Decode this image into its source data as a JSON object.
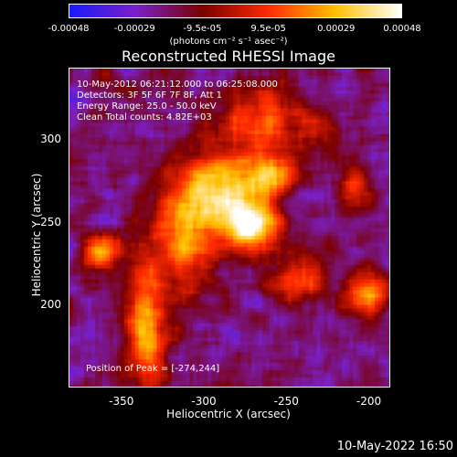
{
  "chart_data": {
    "type": "heatmap",
    "title": "Reconstructed RHESSI Image",
    "xlabel": "Heliocentric X (arcsec)",
    "ylabel": "Heliocentric Y (arcsec)",
    "xlim": [
      -382,
      -187
    ],
    "ylim": [
      150,
      343
    ],
    "x_ticks": [
      "-350",
      "-300",
      "-250",
      "-200"
    ],
    "x_tick_values": [
      -350,
      -300,
      -250,
      -200
    ],
    "y_ticks": [
      "200",
      "250",
      "300"
    ],
    "y_tick_values": [
      200,
      250,
      300
    ],
    "colorbar": {
      "ticks": [
        "-0.00048",
        "-0.00029",
        "-9.5e-05",
        "9.5e-05",
        "0.00029",
        "0.00048"
      ],
      "tick_values": [
        -0.00048,
        -0.00029,
        -9.5e-05,
        9.5e-05,
        0.00029,
        0.00048
      ],
      "unit": "(photons cm⁻² s⁻¹ asec⁻²)",
      "colormap": [
        "#1a1aff",
        "#7a20c8",
        "#7a0000",
        "#ff2a00",
        "#ffc000",
        "#ffffff"
      ]
    },
    "peak": {
      "x": -274,
      "y": 244
    },
    "annotations": [
      "10-May-2012 06:21:12.000 to 06:25:08.000",
      "Detectors: 3F 5F 6F 7F 8F, Att 1",
      "Energy Range: 25.0 - 50.0 keV",
      "Clean     Total counts: 4.82E+03",
      "Position of Peak = [-274,244]"
    ],
    "sources": [
      {
        "x": -272,
        "y": 248,
        "sx": 12,
        "sy": 11,
        "amp": 1.0
      },
      {
        "x": -290,
        "y": 272,
        "sx": 16,
        "sy": 14,
        "amp": 0.75
      },
      {
        "x": -258,
        "y": 278,
        "sx": 10,
        "sy": 9,
        "amp": 0.6
      },
      {
        "x": -312,
        "y": 240,
        "sx": 14,
        "sy": 22,
        "amp": 0.6
      },
      {
        "x": -362,
        "y": 232,
        "sx": 8,
        "sy": 8,
        "amp": 0.7
      },
      {
        "x": -335,
        "y": 185,
        "sx": 9,
        "sy": 26,
        "amp": 0.65
      },
      {
        "x": -200,
        "y": 205,
        "sx": 9,
        "sy": 9,
        "amp": 0.65
      },
      {
        "x": -210,
        "y": 272,
        "sx": 6,
        "sy": 10,
        "amp": 0.5
      },
      {
        "x": -260,
        "y": 310,
        "sx": 22,
        "sy": 16,
        "amp": 0.45
      },
      {
        "x": -240,
        "y": 215,
        "sx": 14,
        "sy": 10,
        "amp": 0.4
      }
    ]
  },
  "footer": "10-May-2022 16:50"
}
